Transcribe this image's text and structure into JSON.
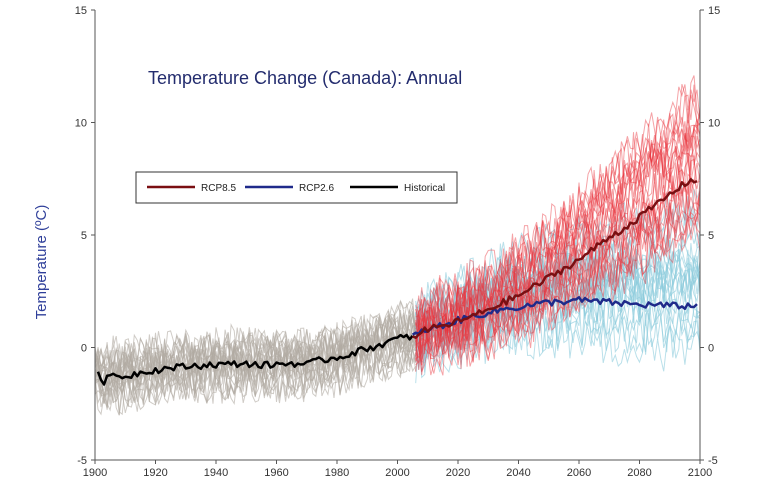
{
  "chart_data": {
    "type": "line",
    "title": "Temperature Change (Canada): Annual",
    "xlabel": "",
    "ylabel": "Temperature (ºC)",
    "xlim": [
      1900,
      2100
    ],
    "ylim": [
      -5,
      15
    ],
    "x_ticks": [
      1900,
      1920,
      1940,
      1960,
      1980,
      2000,
      2020,
      2040,
      2060,
      2080,
      2100
    ],
    "y_ticks": [
      -5,
      0,
      5,
      10,
      15
    ],
    "legend": {
      "placement": "upper-left",
      "entries": [
        "RCP8.5",
        "RCP2.6",
        "Historical"
      ]
    },
    "grid": false,
    "colors": {
      "rcp85_mean": "#7a0f12",
      "rcp85_ensemble": "#e8343c",
      "rcp26_mean": "#1f2a8a",
      "rcp26_ensemble": "#8ccbdc",
      "historical_mean": "#000000",
      "historical_ensemble": "#b1aaa1"
    },
    "series": [
      {
        "name": "Historical",
        "color": "#000000",
        "points": [
          [
            1901,
            -1.1
          ],
          [
            1903,
            -1.5
          ],
          [
            1906,
            -1.2
          ],
          [
            1910,
            -1.3
          ],
          [
            1915,
            -1.1
          ],
          [
            1920,
            -1.0
          ],
          [
            1925,
            -0.9
          ],
          [
            1930,
            -0.85
          ],
          [
            1935,
            -0.8
          ],
          [
            1940,
            -0.75
          ],
          [
            1945,
            -0.75
          ],
          [
            1950,
            -0.7
          ],
          [
            1955,
            -0.8
          ],
          [
            1960,
            -0.75
          ],
          [
            1965,
            -0.7
          ],
          [
            1970,
            -0.75
          ],
          [
            1975,
            -0.55
          ],
          [
            1980,
            -0.45
          ],
          [
            1985,
            -0.25
          ],
          [
            1990,
            -0.05
          ],
          [
            1995,
            0.15
          ],
          [
            2000,
            0.4
          ],
          [
            2005,
            0.5
          ]
        ]
      },
      {
        "name": "RCP8.5",
        "color": "#7a0f12",
        "points": [
          [
            2005,
            0.5
          ],
          [
            2010,
            0.8
          ],
          [
            2015,
            0.95
          ],
          [
            2020,
            1.15
          ],
          [
            2025,
            1.4
          ],
          [
            2030,
            1.7
          ],
          [
            2035,
            2.0
          ],
          [
            2040,
            2.3
          ],
          [
            2045,
            2.7
          ],
          [
            2050,
            3.1
          ],
          [
            2055,
            3.5
          ],
          [
            2060,
            3.9
          ],
          [
            2065,
            4.4
          ],
          [
            2070,
            4.9
          ],
          [
            2075,
            5.3
          ],
          [
            2080,
            5.8
          ],
          [
            2085,
            6.3
          ],
          [
            2090,
            6.8
          ],
          [
            2095,
            7.3
          ],
          [
            2099,
            7.5
          ]
        ]
      },
      {
        "name": "RCP2.6",
        "color": "#1f2a8a",
        "points": [
          [
            2005,
            0.5
          ],
          [
            2010,
            0.8
          ],
          [
            2015,
            1.0
          ],
          [
            2020,
            1.2
          ],
          [
            2025,
            1.4
          ],
          [
            2030,
            1.55
          ],
          [
            2035,
            1.7
          ],
          [
            2040,
            1.8
          ],
          [
            2045,
            1.9
          ],
          [
            2050,
            2.0
          ],
          [
            2055,
            2.05
          ],
          [
            2060,
            2.1
          ],
          [
            2065,
            2.05
          ],
          [
            2070,
            2.0
          ],
          [
            2075,
            1.95
          ],
          [
            2080,
            1.9
          ],
          [
            2085,
            1.9
          ],
          [
            2090,
            1.85
          ],
          [
            2095,
            1.85
          ],
          [
            2099,
            1.85
          ]
        ]
      }
    ],
    "ensembles": [
      {
        "name": "Historical ensemble",
        "color": "#b1aaa1",
        "x_range": [
          1900,
          2006
        ],
        "count": 24,
        "spread": 1.2
      },
      {
        "name": "RCP2.6 ensemble",
        "color": "#8ccbdc",
        "x_range": [
          2006,
          2100
        ],
        "count": 22,
        "spread": 1.5
      },
      {
        "name": "RCP8.5 ensemble",
        "color": "#e8343c",
        "x_range": [
          2006,
          2100
        ],
        "count": 26,
        "spread": 1.5
      }
    ]
  }
}
